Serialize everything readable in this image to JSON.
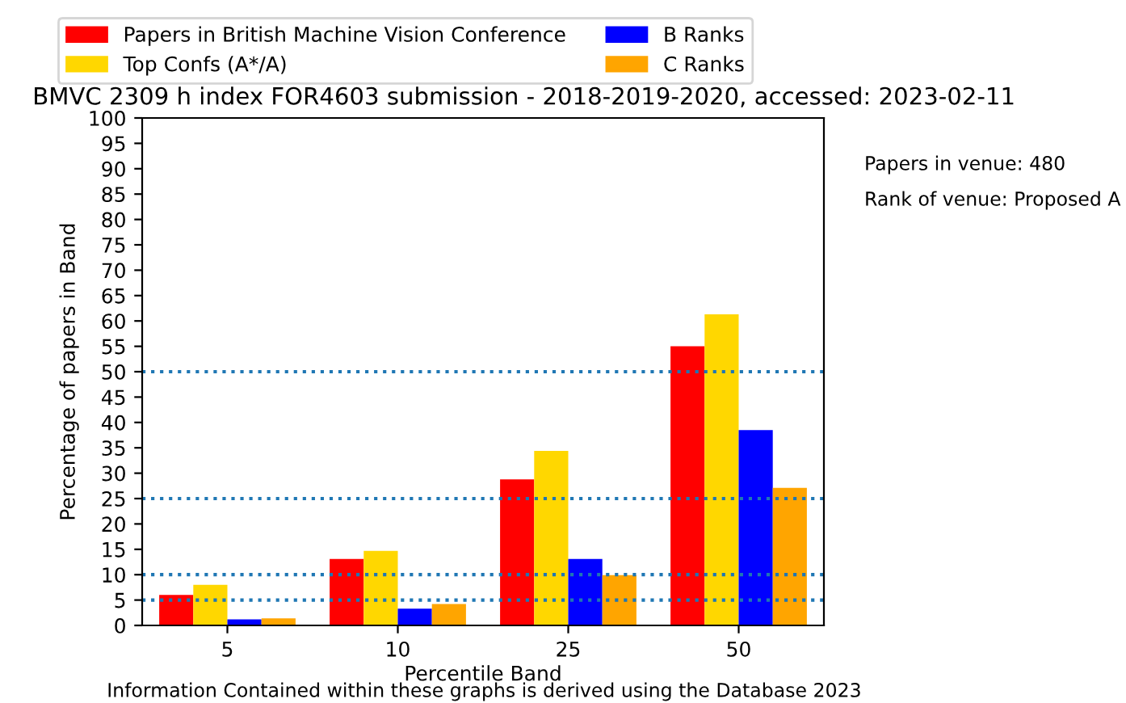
{
  "chart_data": {
    "type": "bar",
    "title": "BMVC 2309 h index FOR4603 submission - 2018-2019-2020, accessed: 2023-02-11",
    "xlabel": "Percentile Band",
    "ylabel": "Percentage of papers in Band",
    "categories": [
      "5",
      "10",
      "25",
      "50"
    ],
    "series": [
      {
        "name": "Papers in British Machine Vision Conference",
        "color": "#ff0000",
        "values": [
          6,
          13.1,
          28.8,
          55
        ]
      },
      {
        "name": "Top Confs (A*/A)",
        "color": "#ffd700",
        "values": [
          8,
          14.7,
          34.4,
          61.3
        ]
      },
      {
        "name": "B Ranks",
        "color": "#0000ff",
        "values": [
          1.2,
          3.3,
          13.1,
          38.5
        ]
      },
      {
        "name": "C Ranks",
        "color": "#ffa500",
        "values": [
          1.4,
          4.2,
          9.9,
          27.1
        ]
      }
    ],
    "ylim": [
      0,
      100
    ],
    "yticks": [
      0,
      5,
      10,
      15,
      20,
      25,
      30,
      35,
      40,
      45,
      50,
      55,
      60,
      65,
      70,
      75,
      80,
      85,
      90,
      95,
      100
    ],
    "ref_lines": [
      {
        "axis": "y",
        "value": 5,
        "color": "#1f77b4",
        "line_style": "dotted"
      },
      {
        "axis": "y",
        "value": 10,
        "color": "#1f77b4",
        "line_style": "dotted"
      },
      {
        "axis": "y",
        "value": 25,
        "color": "#1f77b4",
        "line_style": "dotted"
      },
      {
        "axis": "y",
        "value": 50,
        "color": "#1f77b4",
        "line_style": "dotted"
      }
    ],
    "annotations": [
      "Papers in venue: 480",
      "Rank of venue: Proposed A",
      "Information Contained within these graphs is derived using the Database 2023"
    ],
    "legend": "top left",
    "grid": false
  }
}
